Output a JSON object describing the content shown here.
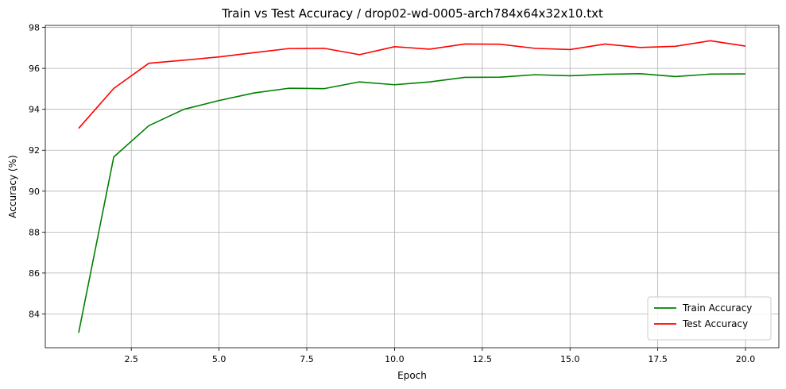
{
  "chart_data": {
    "type": "line",
    "title": "Train vs Test Accuracy / drop02-wd-0005-arch784x64x32x10.txt",
    "xlabel": "Epoch",
    "ylabel": "Accuracy (%)",
    "xlim": [
      0.05,
      20.95
    ],
    "ylim": [
      82.35,
      98.1
    ],
    "xticks": [
      2.5,
      5.0,
      7.5,
      10.0,
      12.5,
      15.0,
      17.5,
      20.0
    ],
    "xtick_labels": [
      "2.5",
      "5.0",
      "7.5",
      "10.0",
      "12.5",
      "15.0",
      "17.5",
      "20.0"
    ],
    "yticks": [
      84,
      86,
      88,
      90,
      92,
      94,
      96,
      98
    ],
    "ytick_labels": [
      "84",
      "86",
      "88",
      "90",
      "92",
      "94",
      "96",
      "98"
    ],
    "grid": true,
    "legend_position": "bottom-right",
    "x": [
      1,
      2,
      3,
      4,
      5,
      6,
      7,
      8,
      9,
      10,
      11,
      12,
      13,
      14,
      15,
      16,
      17,
      18,
      19,
      20
    ],
    "series": [
      {
        "name": "Train Accuracy",
        "color": "#008000",
        "values": [
          83.08,
          91.67,
          93.2,
          94.0,
          94.43,
          94.8,
          95.03,
          95.01,
          95.34,
          95.2,
          95.34,
          95.56,
          95.57,
          95.69,
          95.64,
          95.71,
          95.74,
          95.6,
          95.72,
          95.73
        ]
      },
      {
        "name": "Test Accuracy",
        "color": "#ff0000",
        "values": [
          93.07,
          95.02,
          96.25,
          96.4,
          96.56,
          96.77,
          96.97,
          96.98,
          96.67,
          97.06,
          96.94,
          97.19,
          97.18,
          96.98,
          96.92,
          97.19,
          97.02,
          97.08,
          97.35,
          97.09
        ]
      }
    ]
  }
}
